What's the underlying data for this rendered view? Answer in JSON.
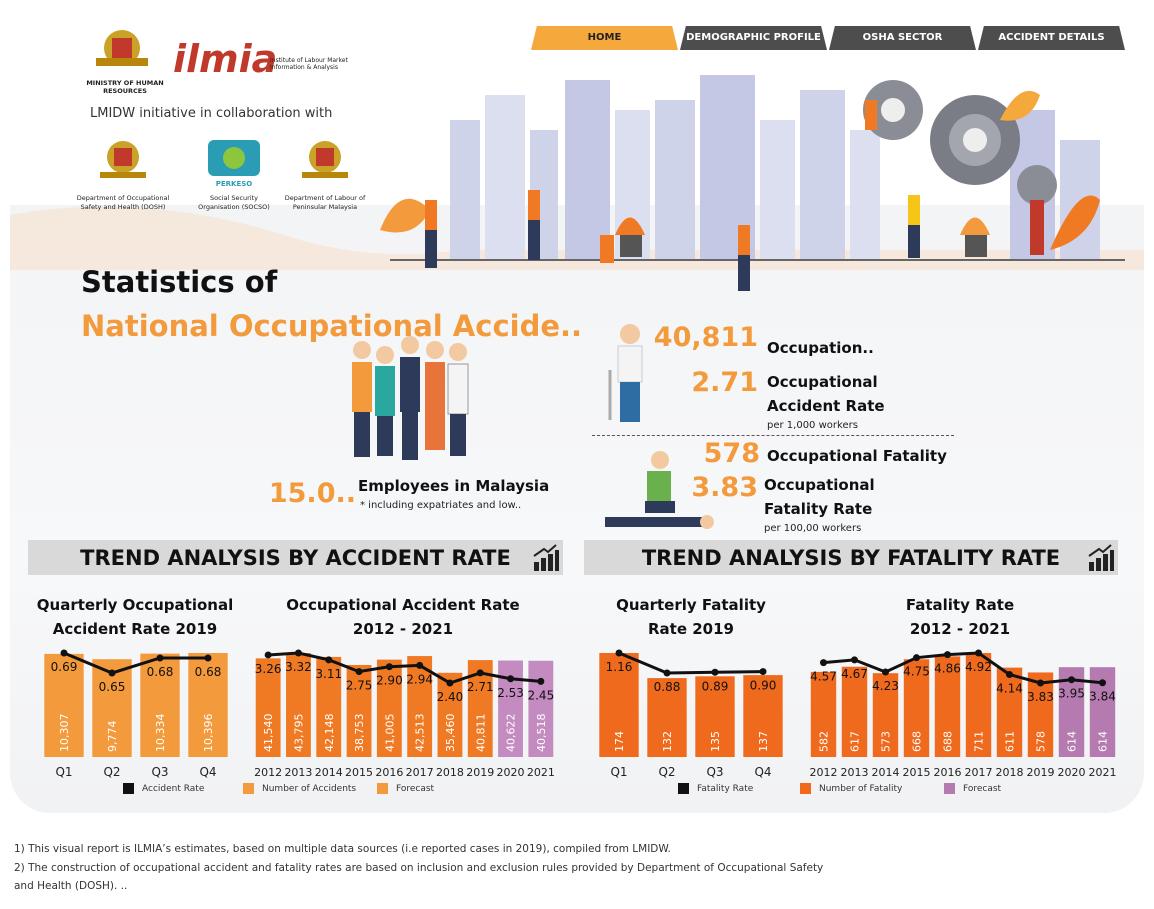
{
  "nav": {
    "tabs": [
      "HOME",
      "DEMOGRAPHIC PROFILE",
      "OSHA SECTOR",
      "ACCIDENT DETAILS"
    ]
  },
  "header": {
    "ministry": "MINISTRY OF HUMAN RESOURCES",
    "ilmia": "ilmia",
    "ilmia_full": "Institute of Labour Market Information & Analysis",
    "initiative": "LMIDW initiative in collaboration with",
    "partners": [
      {
        "name": "Department of Occupational Safety and Health (DOSH)"
      },
      {
        "logo": "PERKESO",
        "name": "Social Security Organisation (SOCSO)"
      },
      {
        "name": "Department of Labour of Peninsular Malaysia"
      }
    ]
  },
  "title": {
    "line1": "Statistics of",
    "line2": "National Occupational Accide.."
  },
  "stats": {
    "employees": {
      "value": "15.0..",
      "label": "Employees in Malaysia",
      "note": "* including expatriates and low.."
    },
    "accidents": {
      "value": "40,811",
      "label": "Occupation.."
    },
    "accident_rate": {
      "value": "2.71",
      "label": "Occupational Accident Rate",
      "note": "per 1,000 workers"
    },
    "fatalities": {
      "value": "578",
      "label": "Occupational Fatality"
    },
    "fatality_rate": {
      "value": "3.83",
      "label": "Occupational Fatality Rate",
      "note": "per 100,00 workers"
    }
  },
  "sections": [
    "TREND ANALYSIS BY ACCIDENT RATE",
    "TREND ANALYSIS BY FATALITY RATE"
  ],
  "chart_data": [
    {
      "type": "bar_line",
      "title": "Quarterly Occupational Accident Rate 2019",
      "categories": [
        "Q1",
        "Q2",
        "Q3",
        "Q4"
      ],
      "series": [
        {
          "name": "Number of Accidents",
          "kind": "bar",
          "colors": [
            "#f39a3c",
            "#f39a3c",
            "#f39a3c",
            "#f39a3c"
          ],
          "values": [
            10307,
            9774,
            10334,
            10396
          ],
          "value_labels": [
            "10,307",
            "9,774",
            "10,334",
            "10,396"
          ]
        },
        {
          "name": "Accident Rate",
          "kind": "line",
          "color": "#111111",
          "values": [
            0.69,
            0.65,
            0.68,
            0.68
          ]
        }
      ]
    },
    {
      "type": "bar_line",
      "title": "Occupational Accident Rate 2012 - 2021",
      "categories": [
        "2012",
        "2013",
        "2014",
        "2015",
        "2016",
        "2017",
        "2018",
        "2019",
        "2020",
        "2021"
      ],
      "series": [
        {
          "name": "Number of Accidents",
          "kind": "bar",
          "colors": [
            "#f07a24",
            "#f07a24",
            "#f07a24",
            "#f07a24",
            "#f07a24",
            "#f07a24",
            "#f07a24",
            "#f07a24",
            "#c48bc0",
            "#c48bc0"
          ],
          "values": [
            41540,
            43795,
            42148,
            38753,
            41005,
            42513,
            35460,
            40811,
            40622,
            40518
          ],
          "value_labels": [
            "41,540",
            "43,795",
            "42,148",
            "38,753",
            "41,005",
            "42,513",
            "35,460",
            "40,811",
            "40,622",
            "40,518"
          ]
        },
        {
          "name": "Accident Rate",
          "kind": "line",
          "color": "#111111",
          "values": [
            3.26,
            3.32,
            3.11,
            2.75,
            2.9,
            2.94,
            2.4,
            2.71,
            2.53,
            2.45
          ],
          "value_labels": [
            "3.26",
            "3.32",
            "3.11",
            "2.75",
            "2.90",
            "2.94",
            "2.40",
            "2.71",
            "2.53",
            "2.45"
          ]
        }
      ],
      "forecast": {
        "name": "Forecast",
        "color": "#f39a3c"
      }
    },
    {
      "type": "bar_line",
      "title": "Quarterly Fatality Rate 2019",
      "categories": [
        "Q1",
        "Q2",
        "Q3",
        "Q4"
      ],
      "series": [
        {
          "name": "Number of Fatality",
          "kind": "bar",
          "colors": [
            "#f06a1e",
            "#f06a1e",
            "#f06a1e",
            "#f06a1e"
          ],
          "values": [
            174,
            132,
            135,
            137
          ]
        },
        {
          "name": "Fatality Rate",
          "kind": "line",
          "color": "#111111",
          "values": [
            1.16,
            0.88,
            0.89,
            0.9
          ],
          "value_labels": [
            "1.16",
            "0.88",
            "0.89",
            "0.90"
          ]
        }
      ]
    },
    {
      "type": "bar_line",
      "title": "Fatality Rate 2012 - 2021",
      "categories": [
        "2012",
        "2013",
        "2014",
        "2015",
        "2016",
        "2017",
        "2018",
        "2019",
        "2020",
        "2021"
      ],
      "series": [
        {
          "name": "Number of Fatality",
          "kind": "bar",
          "colors": [
            "#f06a1e",
            "#f06a1e",
            "#f06a1e",
            "#f06a1e",
            "#f06a1e",
            "#f06a1e",
            "#f06a1e",
            "#f06a1e",
            "#b57bb0",
            "#b57bb0"
          ],
          "values": [
            582,
            617,
            573,
            668,
            688,
            711,
            611,
            578,
            614,
            614
          ]
        },
        {
          "name": "Fatality Rate",
          "kind": "line",
          "color": "#111111",
          "values": [
            4.57,
            4.67,
            4.23,
            4.75,
            4.86,
            4.92,
            4.14,
            3.83,
            3.95,
            3.84
          ]
        }
      ],
      "forecast": {
        "name": "Forecast",
        "color": "#b57bb0"
      }
    }
  ],
  "footnotes": [
    "1) This visual report is ILMIA’s estimates, based on multiple data sources (i.e reported cases in 2019), compiled from LMIDW.",
    "2) The construction of occupational accident and fatality rates are based on inclusion and exclusion rules provided by Department of Occupational Safety and Health (DOSH). .."
  ]
}
